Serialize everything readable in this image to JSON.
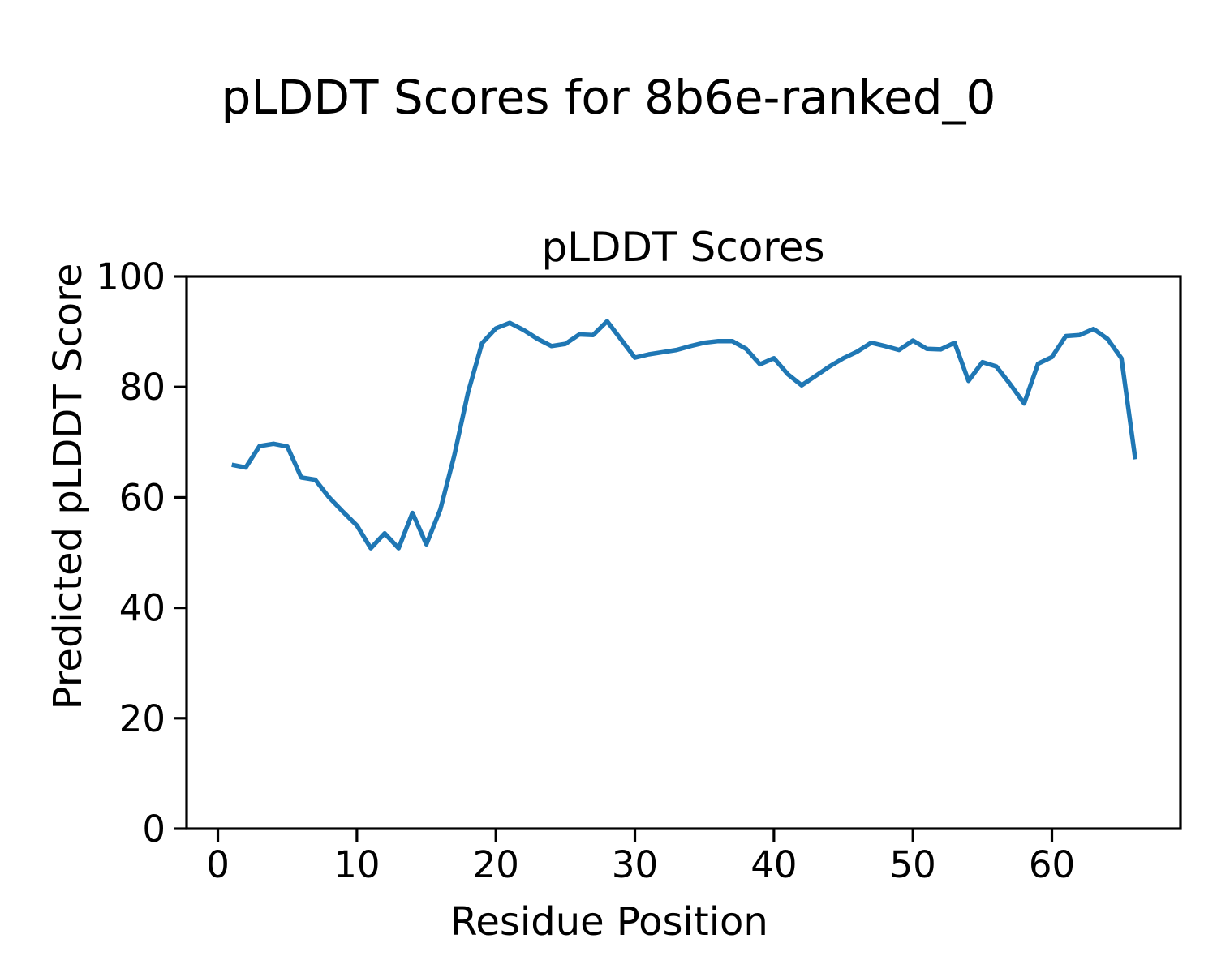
{
  "figure": {
    "suptitle": "pLDDT Scores for 8b6e-ranked_0",
    "axes_title": "pLDDT Scores",
    "xlabel": "Residue Position",
    "ylabel": "Predicted pLDDT Score"
  },
  "chart_data": {
    "type": "line",
    "title": "pLDDT Scores",
    "suptitle": "pLDDT Scores for 8b6e-ranked_0",
    "xlabel": "Residue Position",
    "ylabel": "Predicted pLDDT Score",
    "xlim": [
      -2.25,
      69.25
    ],
    "ylim": [
      0,
      100
    ],
    "xticks": [
      0,
      10,
      20,
      30,
      40,
      50,
      60
    ],
    "yticks": [
      0,
      20,
      40,
      60,
      80,
      100
    ],
    "grid": false,
    "legend": null,
    "line_color": "#1f77b4",
    "line_width": 5.5,
    "axis_color": "#000000",
    "x": [
      1,
      2,
      3,
      4,
      5,
      6,
      7,
      8,
      9,
      10,
      11,
      12,
      13,
      14,
      15,
      16,
      17,
      18,
      19,
      20,
      21,
      22,
      23,
      24,
      25,
      26,
      27,
      28,
      29,
      30,
      31,
      32,
      33,
      34,
      35,
      36,
      37,
      38,
      39,
      40,
      41,
      42,
      43,
      44,
      45,
      46,
      47,
      48,
      49,
      50,
      51,
      52,
      53,
      54,
      55,
      56,
      57,
      58,
      59,
      60,
      61,
      62,
      63,
      64,
      65,
      66
    ],
    "series": [
      {
        "name": "pLDDT",
        "values": [
          65.9,
          65.4,
          69.3,
          69.7,
          69.2,
          63.6,
          63.2,
          60.0,
          57.4,
          54.9,
          50.8,
          53.5,
          50.8,
          57.2,
          51.5,
          57.8,
          67.5,
          79.0,
          87.9,
          90.6,
          91.6,
          90.3,
          88.7,
          87.4,
          87.8,
          89.5,
          89.4,
          91.9,
          88.6,
          85.3,
          85.9,
          86.3,
          86.7,
          87.4,
          88.0,
          88.3,
          88.3,
          86.9,
          84.1,
          85.2,
          82.3,
          80.3,
          82.0,
          83.7,
          85.2,
          86.4,
          88.0,
          87.4,
          86.7,
          88.4,
          86.9,
          86.8,
          88.0,
          81.1,
          84.5,
          83.7,
          80.5,
          77.0,
          84.2,
          85.4,
          89.2,
          89.4,
          90.5,
          88.7,
          85.2,
          66.9
        ]
      }
    ]
  }
}
